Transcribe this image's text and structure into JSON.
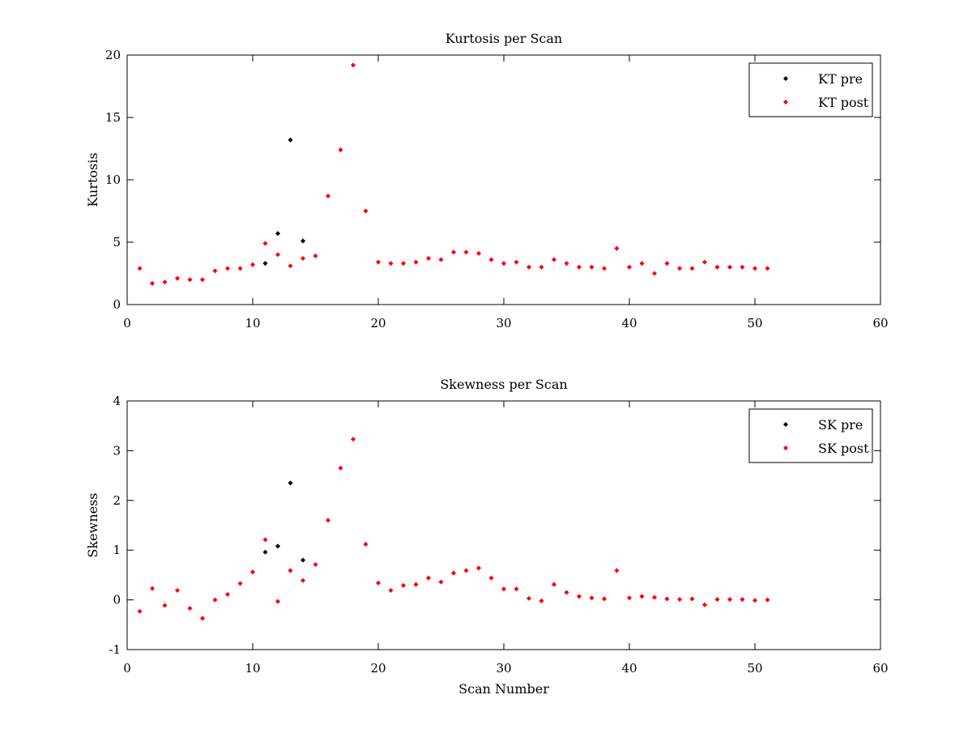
{
  "chart_data": [
    {
      "type": "scatter",
      "title": "Kurtosis per Scan",
      "xlabel": "",
      "ylabel": "Kurtosis",
      "xlim": [
        0,
        60
      ],
      "ylim": [
        0,
        20
      ],
      "xticks": [
        0,
        10,
        20,
        30,
        40,
        50,
        60
      ],
      "yticks": [
        0,
        5,
        10,
        15,
        20
      ],
      "grid": false,
      "legend_position": "top-right",
      "series": [
        {
          "name": "KT pre",
          "color": "#000000",
          "x": [
            11,
            12,
            13,
            14
          ],
          "y": [
            3.3,
            5.7,
            13.2,
            5.1
          ]
        },
        {
          "name": "KT post",
          "color": "#ff0000",
          "x": [
            1,
            2,
            3,
            4,
            5,
            6,
            7,
            8,
            9,
            10,
            11,
            12,
            13,
            14,
            15,
            16,
            17,
            18,
            19,
            20,
            21,
            22,
            23,
            24,
            25,
            26,
            27,
            28,
            29,
            30,
            31,
            32,
            33,
            34,
            35,
            36,
            37,
            38,
            39,
            40,
            41,
            42,
            43,
            44,
            45,
            46,
            47,
            48,
            49,
            50,
            51
          ],
          "y": [
            2.9,
            1.7,
            1.8,
            2.1,
            2.0,
            2.0,
            2.7,
            2.9,
            2.9,
            3.2,
            4.9,
            4.0,
            3.1,
            3.7,
            3.9,
            8.7,
            12.4,
            19.2,
            7.5,
            3.4,
            3.3,
            3.3,
            3.4,
            3.7,
            3.6,
            4.2,
            4.2,
            4.1,
            3.6,
            3.3,
            3.4,
            3.0,
            3.0,
            3.6,
            3.3,
            3.0,
            3.0,
            2.9,
            4.5,
            3.0,
            3.3,
            2.5,
            3.3,
            2.9,
            2.9,
            3.4,
            3.0,
            3.0,
            3.0,
            2.9,
            2.9
          ]
        }
      ]
    },
    {
      "type": "scatter",
      "title": "Skewness per Scan",
      "xlabel": "Scan Number",
      "ylabel": "Skewness",
      "xlim": [
        0,
        60
      ],
      "ylim": [
        -1,
        4
      ],
      "xticks": [
        0,
        10,
        20,
        30,
        40,
        50,
        60
      ],
      "yticks": [
        -1,
        0,
        1,
        2,
        3,
        4
      ],
      "grid": false,
      "legend_position": "top-right",
      "series": [
        {
          "name": "SK pre",
          "color": "#000000",
          "x": [
            11,
            12,
            13,
            14
          ],
          "y": [
            0.96,
            1.08,
            2.35,
            0.8
          ]
        },
        {
          "name": "SK post",
          "color": "#ff0000",
          "x": [
            1,
            2,
            3,
            4,
            5,
            6,
            7,
            8,
            9,
            10,
            11,
            12,
            13,
            14,
            15,
            16,
            17,
            18,
            19,
            20,
            21,
            22,
            23,
            24,
            25,
            26,
            27,
            28,
            29,
            30,
            31,
            32,
            33,
            34,
            35,
            36,
            37,
            38,
            39,
            40,
            41,
            42,
            43,
            44,
            45,
            46,
            47,
            48,
            49,
            50,
            51
          ],
          "y": [
            -0.23,
            0.23,
            -0.11,
            0.19,
            -0.17,
            -0.37,
            0.0,
            0.11,
            0.33,
            0.56,
            1.21,
            -0.03,
            0.59,
            0.39,
            0.71,
            1.6,
            2.65,
            3.23,
            1.12,
            0.34,
            0.19,
            0.29,
            0.31,
            0.44,
            0.36,
            0.54,
            0.59,
            0.64,
            0.44,
            0.22,
            0.22,
            0.03,
            -0.02,
            0.31,
            0.15,
            0.07,
            0.04,
            0.02,
            0.59,
            0.04,
            0.07,
            0.05,
            0.02,
            0.01,
            0.02,
            -0.1,
            0.01,
            0.01,
            0.01,
            -0.01,
            0.0
          ]
        }
      ]
    }
  ]
}
